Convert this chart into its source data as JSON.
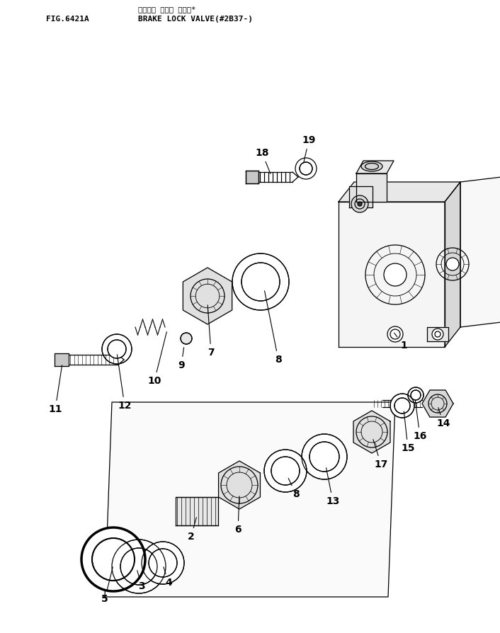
{
  "title_line1": "ブレーキ ロック バルブ*",
  "title_line2": "BRAKE LOCK VALVE(#2B37-)",
  "fig_label": "FIG.6421A",
  "bg_color": "#ffffff",
  "line_color": "#000000",
  "labels": [
    [
      "1",
      570,
      488,
      555,
      468
    ],
    [
      "2",
      270,
      758,
      278,
      728
    ],
    [
      "3",
      200,
      828,
      193,
      803
    ],
    [
      "4",
      238,
      823,
      230,
      798
    ],
    [
      "5",
      148,
      846,
      160,
      798
    ],
    [
      "6",
      336,
      748,
      338,
      698
    ],
    [
      "7",
      298,
      498,
      293,
      428
    ],
    [
      "8",
      393,
      508,
      373,
      408
    ],
    [
      "8",
      418,
      698,
      406,
      673
    ],
    [
      "9",
      256,
      516,
      260,
      488
    ],
    [
      "10",
      218,
      538,
      236,
      466
    ],
    [
      "11",
      78,
      578,
      88,
      513
    ],
    [
      "12",
      176,
      573,
      165,
      498
    ],
    [
      "13",
      470,
      708,
      460,
      658
    ],
    [
      "14",
      626,
      598,
      618,
      573
    ],
    [
      "15",
      576,
      633,
      570,
      578
    ],
    [
      "16",
      593,
      616,
      586,
      563
    ],
    [
      "17",
      538,
      656,
      526,
      618
    ],
    [
      "18",
      370,
      216,
      383,
      248
    ],
    [
      "19",
      436,
      198,
      428,
      233
    ]
  ]
}
